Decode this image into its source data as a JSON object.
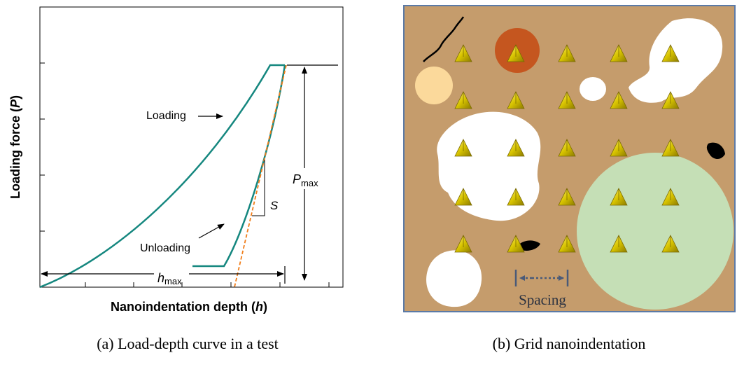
{
  "panel_a": {
    "y_axis_label": [
      "Loading force (",
      "P",
      ")"
    ],
    "x_axis_label": [
      "Nanoindentation depth (",
      "h",
      ")"
    ],
    "loading_label": "Loading",
    "unloading_label": "Unloading",
    "stiffness_label": "S",
    "pmax_label": [
      "P",
      "max"
    ],
    "hmax_label": [
      "h",
      "max"
    ],
    "caption": "(a) Load-depth curve in a test"
  },
  "panel_b": {
    "spacing_label": "Spacing",
    "caption": "(b) Grid nanoindentation"
  }
}
